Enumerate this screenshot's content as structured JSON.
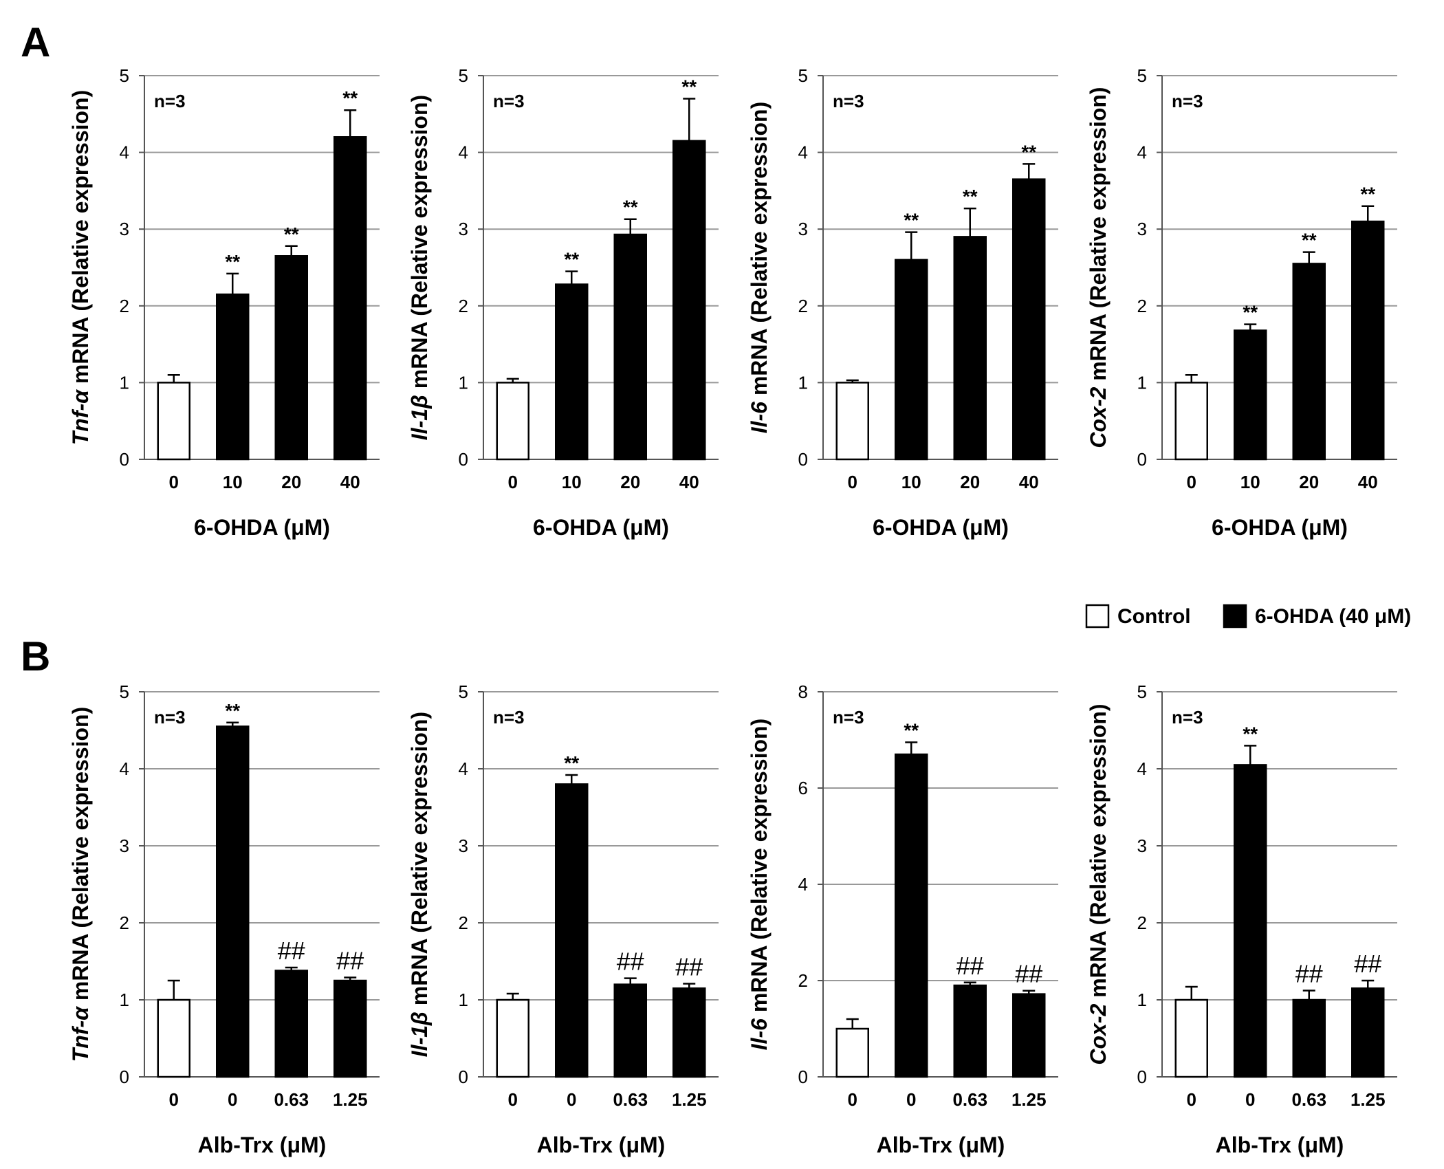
{
  "panels": [
    {
      "label": "A",
      "legend": null
    },
    {
      "label": "B",
      "legend": {
        "entries": [
          {
            "name": "Control",
            "fill": "#ffffff"
          },
          {
            "name": "6-OHDA (40 μM)",
            "fill": "#000000"
          }
        ]
      }
    }
  ],
  "ylabel_suffix": " mRNA (Relative expression)",
  "colors": {
    "control": "#ffffff",
    "treated": "#000000",
    "grid": "#999999",
    "axis": "#555555"
  },
  "chart_data": [
    {
      "type": "bar",
      "panel": "A",
      "gene": "Tnf-α",
      "n_label": "n=3",
      "categories": [
        "0",
        "10",
        "20",
        "40"
      ],
      "xlabel": "6-OHDA (μM)",
      "ylim": [
        0,
        5
      ],
      "yticks": [
        0,
        1,
        2,
        3,
        4,
        5
      ],
      "values": [
        1.0,
        2.15,
        2.65,
        4.2
      ],
      "errors": [
        0.1,
        0.27,
        0.13,
        0.35
      ],
      "fills": [
        "control",
        "treated",
        "treated",
        "treated"
      ],
      "annotations": [
        "",
        "**",
        "**",
        "**"
      ]
    },
    {
      "type": "bar",
      "panel": "A",
      "gene": "Il-1β",
      "n_label": "n=3",
      "categories": [
        "0",
        "10",
        "20",
        "40"
      ],
      "xlabel": "6-OHDA (μM)",
      "ylim": [
        0,
        5
      ],
      "yticks": [
        0,
        1,
        2,
        3,
        4,
        5
      ],
      "values": [
        1.0,
        2.28,
        2.93,
        4.15
      ],
      "errors": [
        0.05,
        0.17,
        0.2,
        0.55
      ],
      "fills": [
        "control",
        "treated",
        "treated",
        "treated"
      ],
      "annotations": [
        "",
        "**",
        "**",
        "**"
      ]
    },
    {
      "type": "bar",
      "panel": "A",
      "gene": "Il-6",
      "n_label": "n=3",
      "categories": [
        "0",
        "10",
        "20",
        "40"
      ],
      "xlabel": "6-OHDA (μM)",
      "ylim": [
        0,
        5
      ],
      "yticks": [
        0,
        1,
        2,
        3,
        4,
        5
      ],
      "values": [
        1.0,
        2.6,
        2.9,
        3.65
      ],
      "errors": [
        0.03,
        0.36,
        0.37,
        0.2
      ],
      "fills": [
        "control",
        "treated",
        "treated",
        "treated"
      ],
      "annotations": [
        "",
        "**",
        "**",
        "**"
      ]
    },
    {
      "type": "bar",
      "panel": "A",
      "gene": "Cox-2",
      "n_label": "n=3",
      "categories": [
        "0",
        "10",
        "20",
        "40"
      ],
      "xlabel": "6-OHDA (μM)",
      "ylim": [
        0,
        5
      ],
      "yticks": [
        0,
        1,
        2,
        3,
        4,
        5
      ],
      "values": [
        1.0,
        1.68,
        2.55,
        3.1
      ],
      "errors": [
        0.1,
        0.08,
        0.15,
        0.2
      ],
      "fills": [
        "control",
        "treated",
        "treated",
        "treated"
      ],
      "annotations": [
        "",
        "**",
        "**",
        "**"
      ]
    },
    {
      "type": "bar",
      "panel": "B",
      "gene": "Tnf-α",
      "n_label": "n=3",
      "categories": [
        "0",
        "0",
        "0.63",
        "1.25"
      ],
      "xlabel": "Alb-Trx (μM)",
      "ylim": [
        0,
        5
      ],
      "yticks": [
        0,
        1,
        2,
        3,
        4,
        5
      ],
      "values": [
        1.0,
        4.55,
        1.38,
        1.25
      ],
      "errors": [
        0.25,
        0.05,
        0.04,
        0.04
      ],
      "fills": [
        "control",
        "treated",
        "treated",
        "treated"
      ],
      "annotations": [
        "",
        "**",
        "##",
        "##"
      ]
    },
    {
      "type": "bar",
      "panel": "B",
      "gene": "Il-1β",
      "n_label": "n=3",
      "categories": [
        "0",
        "0",
        "0.63",
        "1.25"
      ],
      "xlabel": "Alb-Trx (μM)",
      "ylim": [
        0,
        5
      ],
      "yticks": [
        0,
        1,
        2,
        3,
        4,
        5
      ],
      "values": [
        1.0,
        3.8,
        1.2,
        1.15
      ],
      "errors": [
        0.08,
        0.12,
        0.08,
        0.06
      ],
      "fills": [
        "control",
        "treated",
        "treated",
        "treated"
      ],
      "annotations": [
        "",
        "**",
        "##",
        "##"
      ]
    },
    {
      "type": "bar",
      "panel": "B",
      "gene": "Il-6",
      "n_label": "n=3",
      "categories": [
        "0",
        "0",
        "0.63",
        "1.25"
      ],
      "xlabel": "Alb-Trx (μM)",
      "ylim": [
        0,
        8
      ],
      "yticks": [
        0,
        2,
        4,
        6,
        8
      ],
      "values": [
        1.0,
        6.7,
        1.9,
        1.72
      ],
      "errors": [
        0.2,
        0.25,
        0.06,
        0.07
      ],
      "fills": [
        "control",
        "treated",
        "treated",
        "treated"
      ],
      "annotations": [
        "",
        "**",
        "##",
        "##"
      ]
    },
    {
      "type": "bar",
      "panel": "B",
      "gene": "Cox-2",
      "n_label": "n=3",
      "categories": [
        "0",
        "0",
        "0.63",
        "1.25"
      ],
      "xlabel": "Alb-Trx (μM)",
      "ylim": [
        0,
        5
      ],
      "yticks": [
        0,
        1,
        2,
        3,
        4,
        5
      ],
      "values": [
        1.0,
        4.05,
        1.0,
        1.15
      ],
      "errors": [
        0.17,
        0.25,
        0.12,
        0.1
      ],
      "fills": [
        "control",
        "treated",
        "treated",
        "treated"
      ],
      "annotations": [
        "",
        "**",
        "##",
        "##"
      ]
    }
  ]
}
